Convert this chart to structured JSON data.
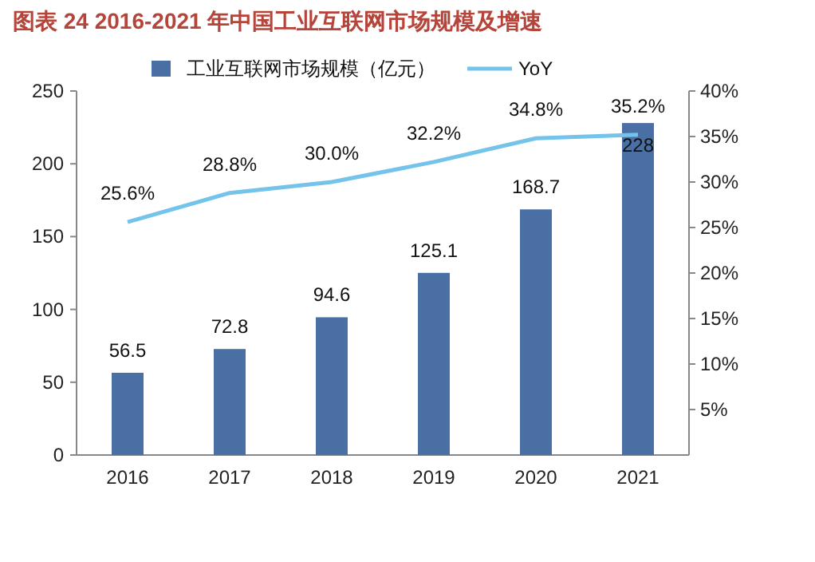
{
  "chart_data": {
    "type": "bar",
    "title": "图表 24 2016-2021 年中国工业互联网市场规模及增速",
    "categories": [
      "2016",
      "2017",
      "2018",
      "2019",
      "2020",
      "2021"
    ],
    "series": [
      {
        "name": "工业互联网市场规模（亿元）",
        "color": "#4a6fa5",
        "values": [
          56.5,
          72.8,
          94.6,
          125.1,
          168.7,
          228
        ],
        "value_labels": [
          "56.5",
          "72.8",
          "94.6",
          "125.1",
          "168.7",
          "228"
        ]
      },
      {
        "name": "YoY",
        "type": "line",
        "axis": "y2",
        "color": "#74c3ea",
        "values": [
          25.6,
          28.8,
          30.0,
          32.2,
          34.8,
          35.2
        ],
        "value_labels": [
          "25.6%",
          "28.8%",
          "30.0%",
          "32.2%",
          "34.8%",
          "35.2%"
        ]
      }
    ],
    "ylim": [
      0,
      250
    ],
    "yticks": [
      0,
      50,
      100,
      150,
      200,
      250
    ],
    "y2lim": [
      0,
      40
    ],
    "y2ticks": [
      {
        "value": 5,
        "label": "5%"
      },
      {
        "value": 10,
        "label": "10%"
      },
      {
        "value": 15,
        "label": "15%"
      },
      {
        "value": 20,
        "label": "20%"
      },
      {
        "value": 25,
        "label": "25%"
      },
      {
        "value": 30,
        "label": "30%"
      },
      {
        "value": 35,
        "label": "35%"
      },
      {
        "value": 40,
        "label": "40%"
      }
    ],
    "grid": false,
    "legend": "top"
  }
}
